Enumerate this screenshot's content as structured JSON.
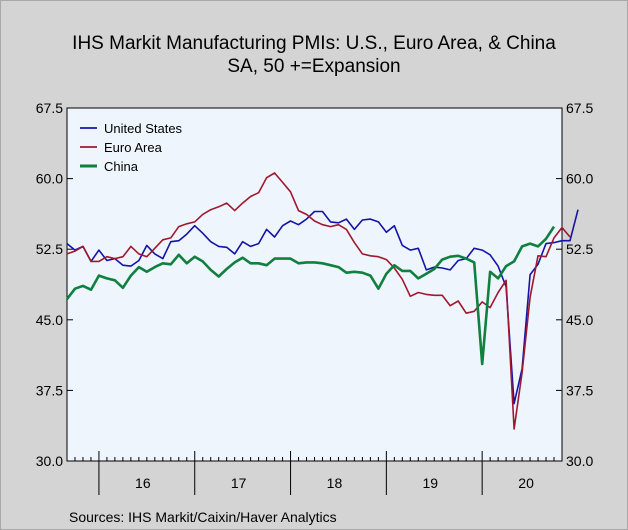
{
  "chart_data": {
    "type": "line",
    "title": "IHS Markit Manufacturing PMIs: U.S., Euro Area, & China",
    "subtitle": "SA, 50 +=Expansion",
    "source": "Sources:   IHS Markit/Caixin/Haver Analytics",
    "ylim": [
      30.0,
      67.5
    ],
    "yticks": [
      "67.5",
      "60.0",
      "52.5",
      "45.0",
      "37.5",
      "30.0"
    ],
    "ytick_values": [
      67.5,
      60.0,
      52.5,
      45.0,
      37.5,
      30.0
    ],
    "xlabels": [
      "16",
      "17",
      "18",
      "19",
      "20"
    ],
    "x_start": "2015-09",
    "x_end": "2020-11",
    "grid": false,
    "legend_position": "top-left",
    "series": [
      {
        "name": "United States",
        "color": "#1414a8",
        "values": [
          53.1,
          52.4,
          52.8,
          51.2,
          52.4,
          51.3,
          51.5,
          50.8,
          50.7,
          51.3,
          52.9,
          52.0,
          51.5,
          53.3,
          53.4,
          54.1,
          55.0,
          54.2,
          53.3,
          52.8,
          52.7,
          52.0,
          53.3,
          52.8,
          53.1,
          54.6,
          53.8,
          55.0,
          55.5,
          55.1,
          55.7,
          56.5,
          56.5,
          55.4,
          55.3,
          55.7,
          54.6,
          55.6,
          55.7,
          55.4,
          54.3,
          55.0,
          52.9,
          52.4,
          52.6,
          50.3,
          50.6,
          50.5,
          50.3,
          51.3,
          51.5,
          52.6,
          52.4,
          51.9,
          50.7,
          48.5,
          36.1,
          39.8,
          49.8,
          50.9,
          53.1,
          53.2,
          53.4,
          53.4,
          56.7
        ]
      },
      {
        "name": "Euro Area",
        "color": "#a01830",
        "values": [
          52.0,
          52.3,
          52.8,
          51.2,
          51.2,
          51.7,
          51.5,
          51.7,
          52.8,
          52.0,
          51.7,
          52.6,
          53.5,
          53.7,
          54.9,
          55.2,
          55.4,
          56.2,
          56.7,
          57.0,
          57.4,
          56.6,
          57.4,
          58.1,
          58.5,
          60.1,
          60.6,
          59.6,
          58.6,
          56.6,
          56.2,
          55.5,
          55.1,
          54.9,
          55.1,
          54.6,
          53.2,
          52.0,
          51.8,
          51.7,
          51.4,
          50.5,
          49.3,
          47.5,
          47.9,
          47.7,
          47.6,
          47.6,
          46.5,
          47.0,
          45.7,
          45.9,
          46.9,
          46.3,
          47.9,
          49.2,
          33.4,
          39.4,
          47.4,
          51.8,
          51.7,
          53.7,
          54.8,
          53.8
        ]
      },
      {
        "name": "China",
        "color": "#108040",
        "values": [
          47.2,
          48.3,
          48.6,
          48.2,
          49.7,
          49.4,
          49.2,
          48.4,
          49.7,
          50.6,
          50.1,
          50.6,
          51.0,
          50.9,
          51.9,
          51.0,
          51.7,
          51.2,
          50.3,
          49.6,
          50.4,
          51.1,
          51.6,
          51.0,
          51.0,
          50.8,
          51.5,
          51.5,
          51.5,
          51.0,
          51.1,
          51.1,
          51.0,
          50.8,
          50.6,
          50.0,
          50.1,
          50.0,
          49.7,
          48.3,
          49.9,
          50.8,
          50.2,
          50.2,
          49.4,
          49.9,
          50.4,
          51.4,
          51.7,
          51.8,
          51.5,
          51.1,
          40.3,
          50.1,
          49.4,
          50.7,
          51.2,
          52.8,
          53.1,
          52.8,
          53.6,
          54.9
        ]
      }
    ]
  }
}
